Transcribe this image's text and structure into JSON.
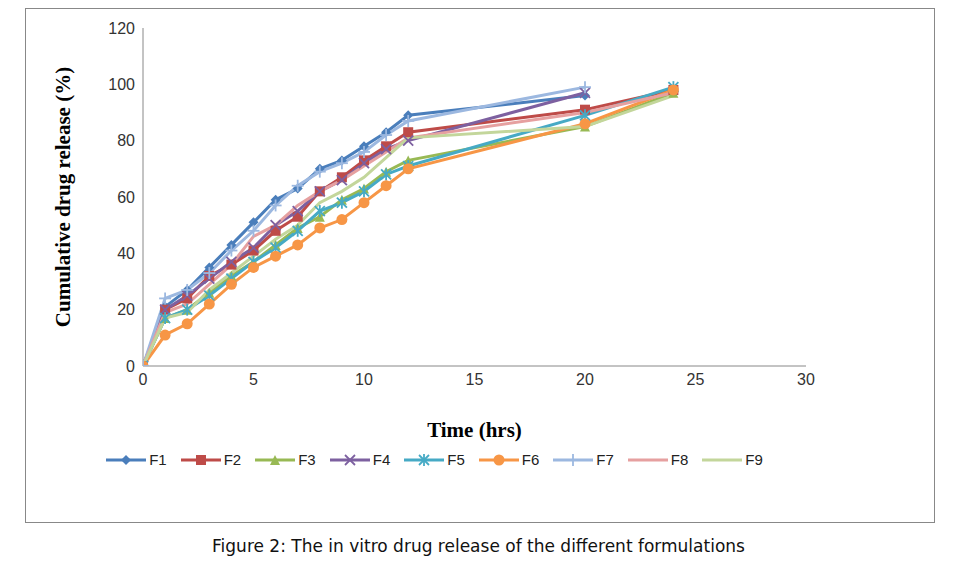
{
  "chart_data": {
    "type": "line",
    "caption": "Figure 2: The in vitro drug release of the different formulations",
    "x_label": "Time (hrs)",
    "y_label": "Cumulative drug release (%)",
    "x": [
      0,
      1,
      2,
      3,
      4,
      5,
      6,
      7,
      8,
      9,
      10,
      11,
      12,
      20,
      24
    ],
    "xlim": [
      0,
      30
    ],
    "xticks": [
      0,
      5,
      10,
      15,
      20,
      25,
      30
    ],
    "ylim": [
      0,
      120
    ],
    "yticks": [
      0,
      20,
      40,
      60,
      80,
      100,
      120
    ],
    "grid": false,
    "legend": "bottom",
    "series": [
      {
        "name": "F1",
        "color": "#4a7ebb",
        "marker": "diamond",
        "values": [
          0,
          21,
          27,
          35,
          43,
          51,
          59,
          63,
          70,
          73,
          78,
          83,
          89,
          96,
          null
        ]
      },
      {
        "name": "F2",
        "color": "#be4b48",
        "marker": "square",
        "values": [
          0,
          20,
          24,
          32,
          36,
          41,
          48,
          53,
          62,
          67,
          73,
          78,
          83,
          91,
          98
        ]
      },
      {
        "name": "F3",
        "color": "#98b954",
        "marker": "triangle",
        "values": [
          0,
          17,
          20,
          26,
          32,
          37,
          43,
          49,
          53,
          59,
          63,
          69,
          73,
          85,
          97
        ]
      },
      {
        "name": "F4",
        "color": "#7d60a0",
        "marker": "x",
        "values": [
          0,
          20,
          25,
          31,
          37,
          42,
          50,
          55,
          62,
          66,
          72,
          77,
          80,
          97,
          null
        ]
      },
      {
        "name": "F5",
        "color": "#46aac5",
        "marker": "star",
        "values": [
          0,
          17,
          20,
          25,
          31,
          37,
          42,
          48,
          55,
          58,
          62,
          68,
          71,
          89,
          99
        ]
      },
      {
        "name": "F6",
        "color": "#f79646",
        "marker": "circle",
        "values": [
          0,
          11,
          15,
          22,
          29,
          35,
          39,
          43,
          49,
          52,
          58,
          64,
          70,
          86,
          98
        ]
      },
      {
        "name": "F7",
        "color": "#9cb8e0",
        "marker": "plus",
        "values": [
          0,
          24,
          27,
          33,
          41,
          48,
          57,
          64,
          69,
          72,
          76,
          82,
          87,
          99,
          null
        ]
      },
      {
        "name": "F8",
        "color": "#e6a0a0",
        "marker": "none",
        "values": [
          0,
          19,
          22,
          29,
          36,
          46,
          50,
          57,
          62,
          66,
          71,
          76,
          81,
          90,
          97
        ]
      },
      {
        "name": "F9",
        "color": "#c3d69b",
        "marker": "none",
        "values": [
          0,
          17,
          19,
          27,
          33,
          39,
          45,
          50,
          58,
          62,
          67,
          74,
          81,
          85,
          96
        ]
      }
    ]
  }
}
